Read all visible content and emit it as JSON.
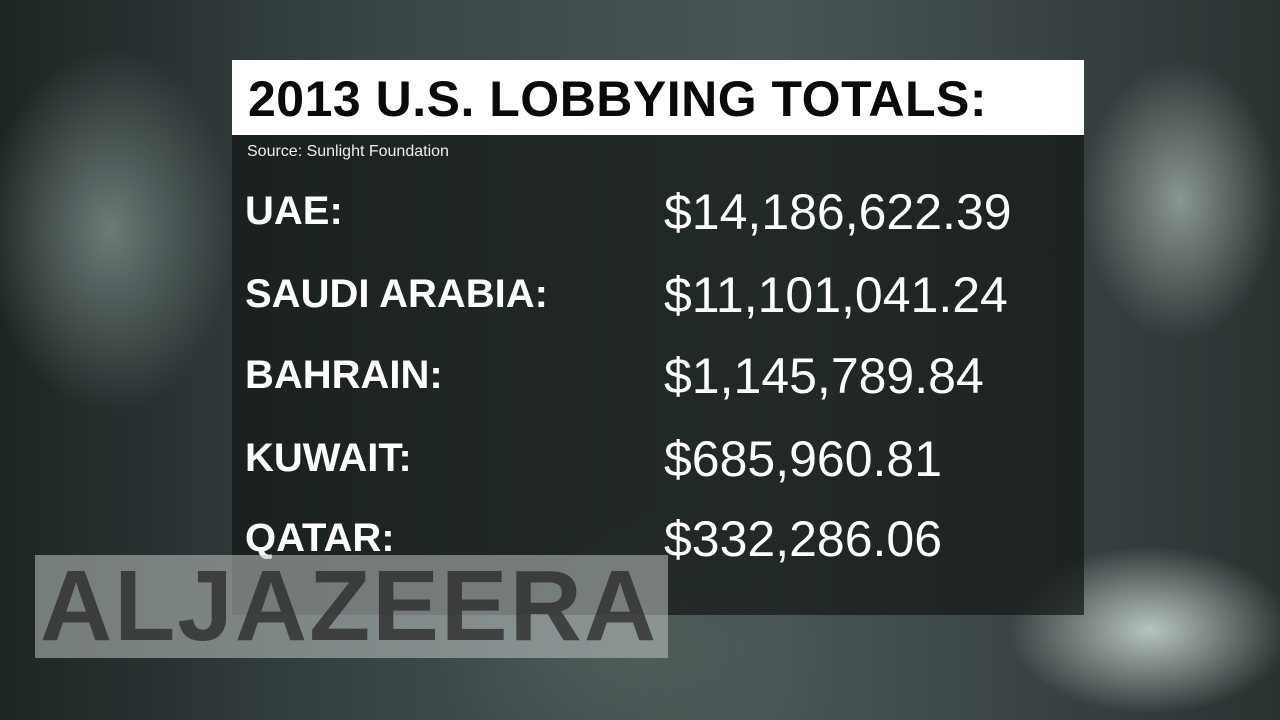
{
  "header": {
    "title": "2013 U.S. LOBBYING TOTALS:",
    "source": "Source: Sunlight Foundation"
  },
  "table": {
    "rows": [
      [
        "UAE:",
        "$14,186,622.39"
      ],
      [
        "SAUDI ARABIA:",
        "$11,101,041.24"
      ],
      [
        "BAHRAIN:",
        "$1,145,789.84"
      ],
      [
        "KUWAIT:",
        "$685,960.81"
      ],
      [
        "QATAR:",
        "$332,286.06"
      ]
    ]
  },
  "watermark": "ALJAZEERA"
}
